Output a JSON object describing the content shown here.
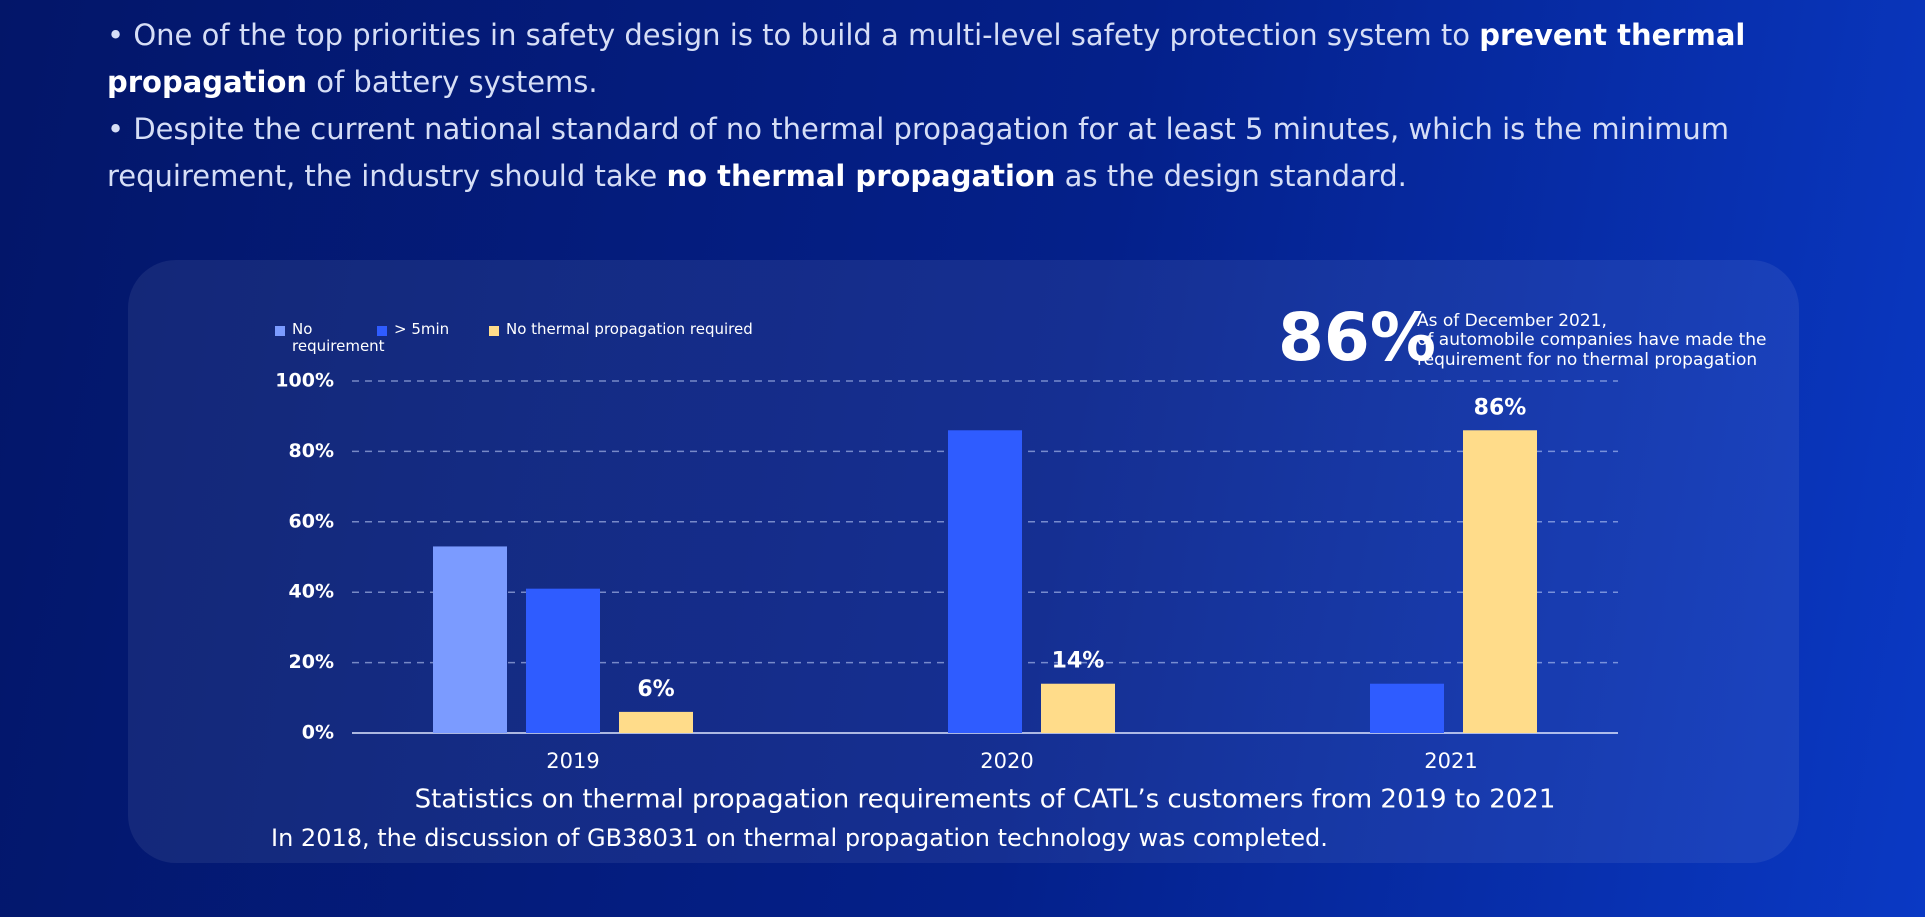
{
  "bullets": [
    [
      {
        "text": "• One of the top priorities in safety design is to build a multi-level safety protection system to ",
        "bold": false
      },
      {
        "text": "prevent thermal propagation",
        "bold": true
      },
      {
        "text": " of battery systems.",
        "bold": false
      }
    ],
    [
      {
        "text": "• Despite the current national standard of no thermal propagation for at least 5 minutes, which is the minimum requirement, the industry should take ",
        "bold": false
      },
      {
        "text": "no thermal propagation",
        "bold": true
      },
      {
        "text": " as the design standard.",
        "bold": false
      }
    ]
  ],
  "highlight": {
    "value": "86%",
    "note": [
      "As of December 2021,",
      "of automobile companies have made the",
      "requirement for no thermal propagation"
    ]
  },
  "chart_data": {
    "type": "bar",
    "title": "Statistics on thermal propagation requirements of CATL’s customers from 2019 to 2021",
    "annotation": "In 2018, the discussion of GB38031 on thermal propagation technology was completed.",
    "categories": [
      "2019",
      "2020",
      "2021"
    ],
    "series": [
      {
        "name": "No requirement",
        "color": "#7b9bff",
        "values": [
          53,
          0,
          0
        ]
      },
      {
        "name": "> 5min",
        "color": "#2f5cff",
        "values": [
          41,
          86,
          14
        ]
      },
      {
        "name": "No thermal propagation required",
        "color": "#ffdc8a",
        "values": [
          6,
          14,
          86
        ],
        "value_labels": [
          "6%",
          "14%",
          "86%"
        ]
      }
    ],
    "ylim": [
      0,
      100
    ],
    "yticks": [
      {
        "value": 0,
        "label": "0%"
      },
      {
        "value": 20,
        "label": "20%"
      },
      {
        "value": 40,
        "label": "40%"
      },
      {
        "value": 60,
        "label": "60%"
      },
      {
        "value": 80,
        "label": "80%"
      },
      {
        "value": 100,
        "label": "100%"
      }
    ],
    "grid": true,
    "legend": "top-left"
  }
}
